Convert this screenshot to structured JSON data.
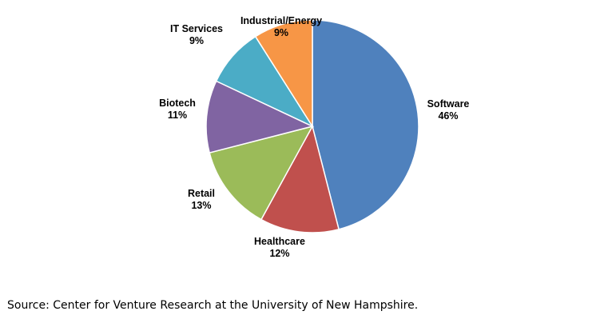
{
  "chart_data": {
    "type": "pie",
    "slices": [
      {
        "name": "Software",
        "value": 46,
        "label": "46%",
        "color": "#4F81BD"
      },
      {
        "name": "Healthcare",
        "value": 12,
        "label": "12%",
        "color": "#C0504D"
      },
      {
        "name": "Retail",
        "value": 13,
        "label": "13%",
        "color": "#9BBB59"
      },
      {
        "name": "Biotech",
        "value": 11,
        "label": "11%",
        "color": "#8064A2"
      },
      {
        "name": "IT Services",
        "value": 9,
        "label": "9%",
        "color": "#4BACC6"
      },
      {
        "name": "Industrial/Energy",
        "value": 9,
        "label": "9%",
        "color": "#F79646"
      }
    ],
    "legend": "none"
  },
  "source": "Source: Center for Venture Research at the University of New Hampshire."
}
